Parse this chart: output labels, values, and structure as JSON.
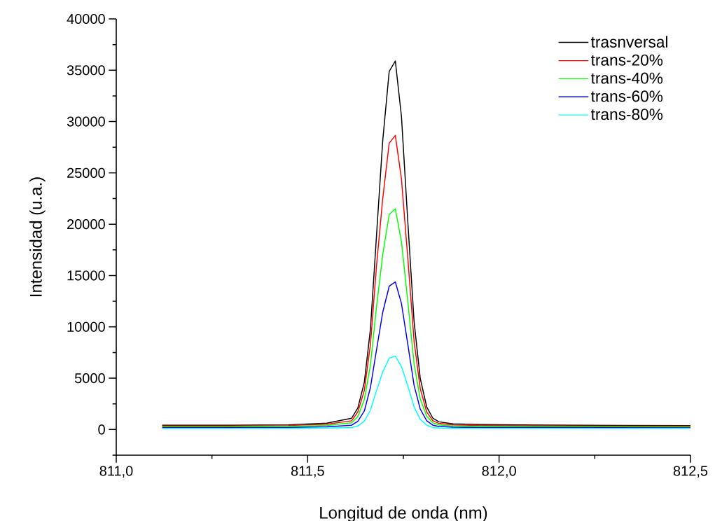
{
  "chart_data": {
    "type": "line",
    "xlabel": "Longitud de onda (nm)",
    "ylabel": "Intensidad (u.a.)",
    "x": [
      811.12,
      811.3,
      811.45,
      811.55,
      811.615,
      811.631,
      811.648,
      811.664,
      811.68,
      811.696,
      811.713,
      811.729,
      811.745,
      811.762,
      811.778,
      811.794,
      811.811,
      811.827,
      811.843,
      811.88,
      811.95,
      812.1,
      812.3,
      812.5
    ],
    "series": [
      {
        "name": "trasnversal",
        "color": "#000000",
        "values": [
          420,
          420,
          460,
          620,
          1100,
          2100,
          4600,
          9800,
          19000,
          28100,
          34900,
          35900,
          30500,
          20000,
          10500,
          5000,
          2200,
          1100,
          750,
          550,
          480,
          430,
          400,
          380
        ]
      },
      {
        "name": "trans-20%",
        "color": "#ff0000",
        "values": [
          350,
          350,
          390,
          520,
          850,
          1700,
          3800,
          8300,
          16000,
          22450,
          27900,
          28650,
          24400,
          16500,
          8600,
          4000,
          1700,
          850,
          600,
          450,
          400,
          370,
          340,
          330
        ]
      },
      {
        "name": "trans-40%",
        "color": "#00ff00",
        "values": [
          260,
          260,
          290,
          400,
          650,
          1250,
          2900,
          6300,
          12000,
          17000,
          20950,
          21500,
          18300,
          12300,
          6400,
          3000,
          1300,
          650,
          450,
          350,
          300,
          280,
          260,
          250
        ]
      },
      {
        "name": "trans-60%",
        "color": "#0000ff",
        "values": [
          180,
          180,
          200,
          270,
          420,
          800,
          1800,
          4100,
          7800,
          11400,
          13960,
          14380,
          12280,
          8200,
          4300,
          2000,
          850,
          420,
          300,
          230,
          200,
          190,
          180,
          170
        ]
      },
      {
        "name": "trans-80%",
        "color": "#00ffff",
        "values": [
          100,
          100,
          110,
          140,
          200,
          350,
          800,
          1900,
          3800,
          5600,
          6960,
          7150,
          6140,
          4200,
          2200,
          1000,
          420,
          200,
          140,
          110,
          100,
          100,
          100,
          100
        ]
      }
    ],
    "xlim": [
      811.0,
      812.5
    ],
    "xticks": [
      {
        "value": 811.0,
        "label": "811,0"
      },
      {
        "value": 811.25,
        "label": null
      },
      {
        "value": 811.5,
        "label": "811,5"
      },
      {
        "value": 811.75,
        "label": null
      },
      {
        "value": 812.0,
        "label": "812,0"
      },
      {
        "value": 812.25,
        "label": null
      },
      {
        "value": 812.5,
        "label": "812,5"
      }
    ],
    "ylim": [
      -2500,
      40000
    ],
    "yticks": [
      {
        "value": -2500,
        "label": null
      },
      0,
      {
        "value": 2500,
        "label": null
      },
      5000,
      {
        "value": 7500,
        "label": null
      },
      10000,
      {
        "value": 12500,
        "label": null
      },
      15000,
      {
        "value": 17500,
        "label": null
      },
      20000,
      {
        "value": 22500,
        "label": null
      },
      25000,
      {
        "value": 27500,
        "label": null
      },
      30000,
      {
        "value": 32500,
        "label": null
      },
      35000,
      {
        "value": 37500,
        "label": null
      },
      40000
    ],
    "legend": "top right",
    "grid": false,
    "marker": "none",
    "line_style": "solid"
  }
}
